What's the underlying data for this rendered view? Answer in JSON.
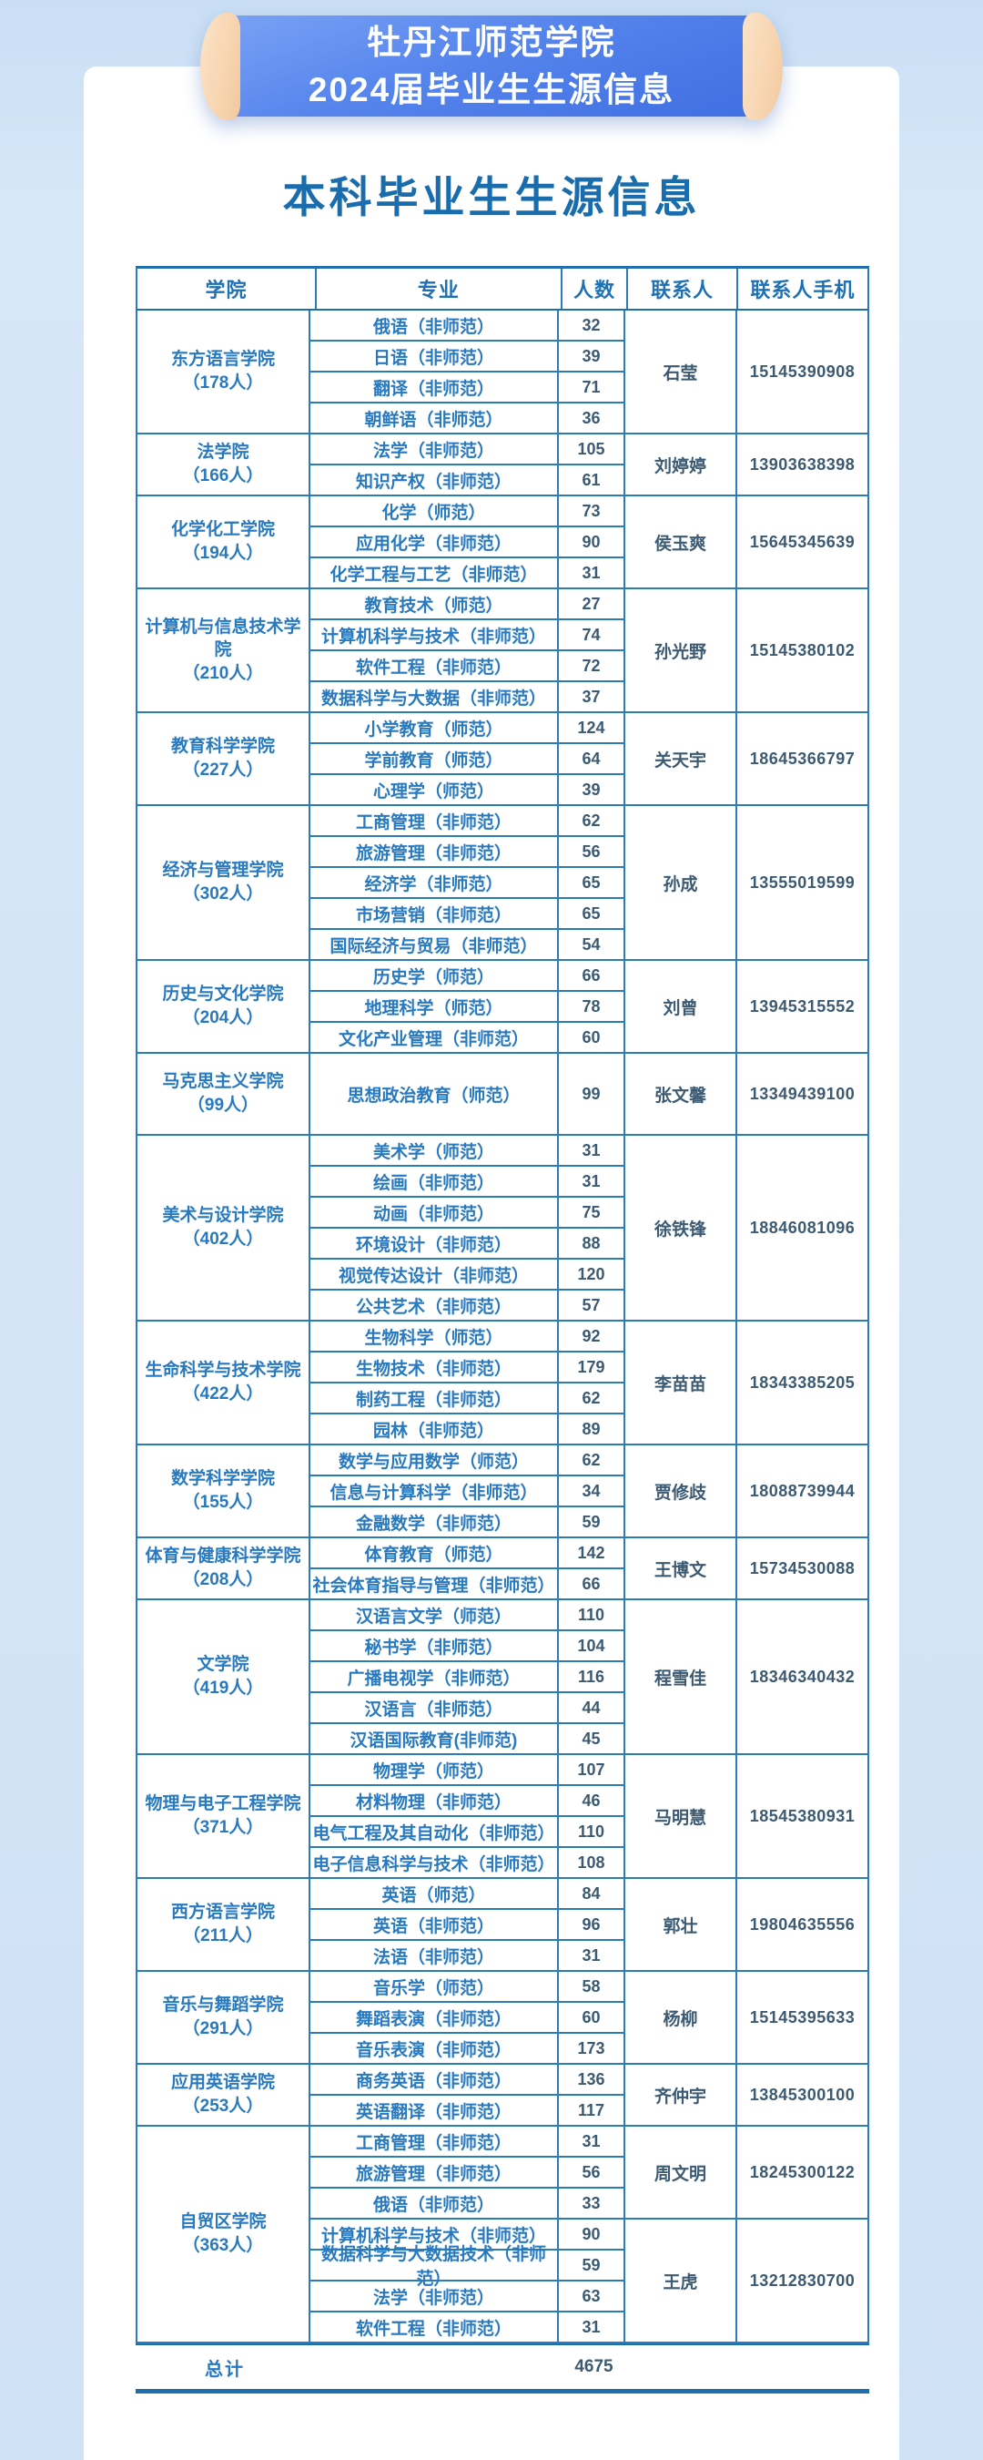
{
  "banner": {
    "line1": "牡丹江师范学院",
    "line2": "2024届毕业生生源信息",
    "body_color": "#4a7ae6",
    "cap_color": "#f7d5b0",
    "text_color": "#ffffff"
  },
  "page_title": "本科毕业生生源信息",
  "colors": {
    "page_background": "#d3e4f6",
    "card_background": "#ffffff",
    "table_line": "#2b7cbb",
    "blue_text": "#2779c0",
    "dark_text": "#3c5a72",
    "heading_text": "#1a6dad"
  },
  "table": {
    "headers": [
      "学院",
      "专业",
      "人数",
      "联系人",
      "联系人手机"
    ],
    "sections": [
      {
        "college": "东方语言学院",
        "size": "（178人）",
        "rows": [
          {
            "major": "俄语（非师范）",
            "count": "32"
          },
          {
            "major": "日语（非师范）",
            "count": "39"
          },
          {
            "major": "翻译（非师范）",
            "count": "71"
          },
          {
            "major": "朝鲜语（非师范）",
            "count": "36"
          }
        ],
        "contacts": [
          {
            "name": "石莹",
            "phone": "15145390908",
            "rows": 4
          }
        ]
      },
      {
        "college": "法学院",
        "size": "（166人）",
        "rows": [
          {
            "major": "法学（非师范）",
            "count": "105"
          },
          {
            "major": "知识产权（非师范）",
            "count": "61"
          }
        ],
        "contacts": [
          {
            "name": "刘婷婷",
            "phone": "13903638398",
            "rows": 2
          }
        ]
      },
      {
        "college": "化学化工学院",
        "size": "（194人）",
        "rows": [
          {
            "major": "化学（师范）",
            "count": "73"
          },
          {
            "major": "应用化学（非师范）",
            "count": "90"
          },
          {
            "major": "化学工程与工艺（非师范）",
            "count": "31"
          }
        ],
        "contacts": [
          {
            "name": "侯玉爽",
            "phone": "15645345639",
            "rows": 3
          }
        ]
      },
      {
        "college": "计算机与信息技术学院",
        "size": "（210人）",
        "rows": [
          {
            "major": "教育技术（师范）",
            "count": "27"
          },
          {
            "major": "计算机科学与技术（非师范）",
            "count": "74"
          },
          {
            "major": "软件工程（非师范）",
            "count": "72"
          },
          {
            "major": "数据科学与大数据（非师范）",
            "count": "37"
          }
        ],
        "contacts": [
          {
            "name": "孙光野",
            "phone": "15145380102",
            "rows": 4
          }
        ]
      },
      {
        "college": "教育科学学院",
        "size": "（227人）",
        "rows": [
          {
            "major": "小学教育（师范）",
            "count": "124"
          },
          {
            "major": "学前教育（师范）",
            "count": "64"
          },
          {
            "major": "心理学（师范）",
            "count": "39"
          }
        ],
        "contacts": [
          {
            "name": "关天宇",
            "phone": "18645366797",
            "rows": 3
          }
        ]
      },
      {
        "college": "经济与管理学院",
        "size": "（302人）",
        "rows": [
          {
            "major": "工商管理（非师范）",
            "count": "62"
          },
          {
            "major": "旅游管理（非师范）",
            "count": "56"
          },
          {
            "major": "经济学（非师范）",
            "count": "65"
          },
          {
            "major": "市场营销（非师范）",
            "count": "65"
          },
          {
            "major": "国际经济与贸易（非师范）",
            "count": "54"
          }
        ],
        "contacts": [
          {
            "name": "孙成",
            "phone": "13555019599",
            "rows": 5
          }
        ]
      },
      {
        "college": "历史与文化学院",
        "size": "（204人）",
        "rows": [
          {
            "major": "历史学（师范）",
            "count": "66"
          },
          {
            "major": "地理科学（师范）",
            "count": "78"
          },
          {
            "major": "文化产业管理（非师范）",
            "count": "60"
          }
        ],
        "contacts": [
          {
            "name": "刘曾",
            "phone": "13945315552",
            "rows": 3
          }
        ]
      },
      {
        "college": "马克思主义学院",
        "size": "（99人）",
        "rows": [
          {
            "major": "思想政治教育（师范）",
            "count": "99"
          }
        ],
        "contacts": [
          {
            "name": "张文馨",
            "phone": "13349439100",
            "rows": 1
          }
        ]
      },
      {
        "college": "美术与设计学院",
        "size": "（402人）",
        "rows": [
          {
            "major": "美术学（师范）",
            "count": "31"
          },
          {
            "major": "绘画（非师范）",
            "count": "31"
          },
          {
            "major": "动画（非师范）",
            "count": "75"
          },
          {
            "major": "环境设计（非师范）",
            "count": "88"
          },
          {
            "major": "视觉传达设计（非师范）",
            "count": "120"
          },
          {
            "major": "公共艺术（非师范）",
            "count": "57"
          }
        ],
        "contacts": [
          {
            "name": "徐铁锋",
            "phone": "18846081096",
            "rows": 6
          }
        ]
      },
      {
        "college": "生命科学与技术学院",
        "size": "（422人）",
        "rows": [
          {
            "major": "生物科学（师范）",
            "count": "92"
          },
          {
            "major": "生物技术（非师范）",
            "count": "179"
          },
          {
            "major": "制药工程（非师范）",
            "count": "62"
          },
          {
            "major": "园林（非师范）",
            "count": "89"
          }
        ],
        "contacts": [
          {
            "name": "李苗苗",
            "phone": "18343385205",
            "rows": 4
          }
        ]
      },
      {
        "college": "数学科学学院",
        "size": "（155人）",
        "rows": [
          {
            "major": "数学与应用数学（师范）",
            "count": "62"
          },
          {
            "major": "信息与计算科学（非师范）",
            "count": "34"
          },
          {
            "major": "金融数学（非师范）",
            "count": "59"
          }
        ],
        "contacts": [
          {
            "name": "贾修歧",
            "phone": "18088739944",
            "rows": 3
          }
        ]
      },
      {
        "college": "体育与健康科学学院",
        "size": "（208人）",
        "rows": [
          {
            "major": "体育教育（师范）",
            "count": "142"
          },
          {
            "major": "社会体育指导与管理（非师范）",
            "count": "66"
          }
        ],
        "contacts": [
          {
            "name": "王博文",
            "phone": "15734530088",
            "rows": 2
          }
        ]
      },
      {
        "college": "文学院",
        "size": "（419人）",
        "rows": [
          {
            "major": "汉语言文学（师范）",
            "count": "110"
          },
          {
            "major": "秘书学（非师范）",
            "count": "104"
          },
          {
            "major": "广播电视学（非师范）",
            "count": "116"
          },
          {
            "major": "汉语言（非师范）",
            "count": "44"
          },
          {
            "major": "汉语国际教育(非师范)",
            "count": "45"
          }
        ],
        "contacts": [
          {
            "name": "程雪佳",
            "phone": "18346340432",
            "rows": 5
          }
        ]
      },
      {
        "college": "物理与电子工程学院",
        "size": "（371人）",
        "rows": [
          {
            "major": "物理学（师范）",
            "count": "107"
          },
          {
            "major": "材料物理（非师范）",
            "count": "46"
          },
          {
            "major": "电气工程及其自动化（非师范）",
            "count": "110"
          },
          {
            "major": "电子信息科学与技术（非师范）",
            "count": "108"
          }
        ],
        "contacts": [
          {
            "name": "马明慧",
            "phone": "18545380931",
            "rows": 4
          }
        ]
      },
      {
        "college": "西方语言学院",
        "size": "（211人）",
        "rows": [
          {
            "major": "英语（师范）",
            "count": "84"
          },
          {
            "major": "英语（非师范）",
            "count": "96"
          },
          {
            "major": "法语（非师范）",
            "count": "31"
          }
        ],
        "contacts": [
          {
            "name": "郭壮",
            "phone": "19804635556",
            "rows": 3
          }
        ]
      },
      {
        "college": "音乐与舞蹈学院",
        "size": "（291人）",
        "rows": [
          {
            "major": "音乐学（师范）",
            "count": "58"
          },
          {
            "major": "舞蹈表演（非师范）",
            "count": "60"
          },
          {
            "major": "音乐表演（非师范）",
            "count": "173"
          }
        ],
        "contacts": [
          {
            "name": "杨柳",
            "phone": "15145395633",
            "rows": 3
          }
        ]
      },
      {
        "college": "应用英语学院",
        "size": "（253人）",
        "rows": [
          {
            "major": "商务英语（非师范）",
            "count": "136"
          },
          {
            "major": "英语翻译（非师范）",
            "count": "117"
          }
        ],
        "contacts": [
          {
            "name": "齐仲宇",
            "phone": "13845300100",
            "rows": 2
          }
        ]
      },
      {
        "college": "自贸区学院",
        "size": "（363人）",
        "rows": [
          {
            "major": "工商管理（非师范）",
            "count": "31"
          },
          {
            "major": "旅游管理（非师范）",
            "count": "56"
          },
          {
            "major": "俄语（非师范）",
            "count": "33"
          },
          {
            "major": "计算机科学与技术（非师范）",
            "count": "90"
          },
          {
            "major": "数据科学与大数据技术（非师范）",
            "count": "59"
          },
          {
            "major": "法学（非师范）",
            "count": "63"
          },
          {
            "major": "软件工程（非师范）",
            "count": "31"
          }
        ],
        "contacts": [
          {
            "name": "周文明",
            "phone": "18245300122",
            "rows": 3
          },
          {
            "name": "王虎",
            "phone": "13212830700",
            "rows": 4
          }
        ]
      }
    ],
    "footer": {
      "label": "总计",
      "total": "4675"
    }
  }
}
